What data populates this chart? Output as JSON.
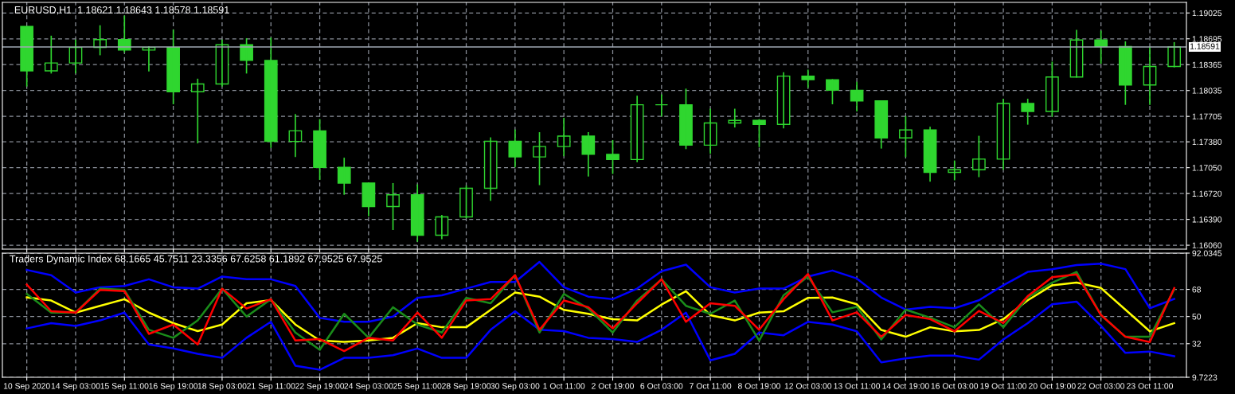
{
  "chart_data": [
    {
      "type": "candlestick",
      "title": "EURUSD,H1  1.18621 1.18643 1.18578 1.18591",
      "color": "#2fd62f",
      "ohlc": [
        [
          1.18852,
          1.18852,
          1.18086,
          1.18286
        ],
        [
          1.18286,
          1.18735,
          1.18252,
          1.18386
        ],
        [
          1.18386,
          1.18685,
          1.18252,
          1.18585
        ],
        [
          1.18585,
          1.18868,
          1.18485,
          1.18685
        ],
        [
          1.18685,
          1.18992,
          1.1852,
          1.18552
        ],
        [
          1.18552,
          1.18602,
          1.18279,
          1.18585
        ],
        [
          1.18585,
          1.18812,
          1.17859,
          1.18019
        ],
        [
          1.18019,
          1.18186,
          1.1736,
          1.18119
        ],
        [
          1.18119,
          1.18685,
          1.18086,
          1.18619
        ],
        [
          1.18619,
          1.18702,
          1.18252,
          1.18419
        ],
        [
          1.18419,
          1.18712,
          1.17303,
          1.17386
        ],
        [
          1.17386,
          1.17736,
          1.17187,
          1.1752
        ],
        [
          1.1752,
          1.1767,
          1.16894,
          1.17054
        ],
        [
          1.17054,
          1.17177,
          1.16704,
          1.16854
        ],
        [
          1.16854,
          1.16854,
          1.16428,
          1.16554
        ],
        [
          1.16554,
          1.16854,
          1.16254,
          1.16704
        ],
        [
          1.16704,
          1.16837,
          1.16104,
          1.16188
        ],
        [
          1.16188,
          1.16448,
          1.16138,
          1.16421
        ],
        [
          1.16421,
          1.16821,
          1.16404,
          1.16787
        ],
        [
          1.16787,
          1.17437,
          1.16627,
          1.17387
        ],
        [
          1.17387,
          1.17537,
          1.17054,
          1.17187
        ],
        [
          1.17187,
          1.17503,
          1.16827,
          1.1732
        ],
        [
          1.1732,
          1.17687,
          1.17197,
          1.17453
        ],
        [
          1.17453,
          1.17503,
          1.16937,
          1.1722
        ],
        [
          1.1722,
          1.17403,
          1.1697,
          1.17154
        ],
        [
          1.17154,
          1.17969,
          1.1712,
          1.17853
        ],
        [
          1.17853,
          1.17986,
          1.17703,
          1.17853
        ],
        [
          1.17853,
          1.18059,
          1.17287,
          1.17337
        ],
        [
          1.17337,
          1.17803,
          1.17227,
          1.1762
        ],
        [
          1.1762,
          1.17803,
          1.17563,
          1.17653
        ],
        [
          1.17653,
          1.1767,
          1.17313,
          1.17603
        ],
        [
          1.17603,
          1.18269,
          1.17553,
          1.18219
        ],
        [
          1.18219,
          1.18302,
          1.18069,
          1.18173
        ],
        [
          1.18173,
          1.1818,
          1.17859,
          1.18038
        ],
        [
          1.18038,
          1.18146,
          1.17768,
          1.17903
        ],
        [
          1.17903,
          1.17903,
          1.17294,
          1.1743
        ],
        [
          1.1743,
          1.17707,
          1.17186,
          1.17531
        ],
        [
          1.17531,
          1.17572,
          1.16872,
          1.1699
        ],
        [
          1.1699,
          1.17142,
          1.16889,
          1.17024
        ],
        [
          1.17024,
          1.17457,
          1.16929,
          1.17159
        ],
        [
          1.17159,
          1.1793,
          1.17024,
          1.17869
        ],
        [
          1.17869,
          1.1793,
          1.17599,
          1.17768
        ],
        [
          1.17768,
          1.18403,
          1.177,
          1.18207
        ],
        [
          1.18207,
          1.18809,
          1.182,
          1.1868
        ],
        [
          1.1868,
          1.18799,
          1.18376,
          1.18596
        ],
        [
          1.18596,
          1.18663,
          1.17852,
          1.18106
        ],
        [
          1.18106,
          1.18596,
          1.17852,
          1.18342
        ],
        [
          1.18342,
          1.18653,
          1.1833,
          1.18591
        ]
      ],
      "ylim": [
        1.1601,
        1.1916
      ],
      "yticks": [
        {
          "value": 1.19025,
          "label": "1.19025"
        },
        {
          "value": 1.18695,
          "label": "1.18695"
        },
        {
          "value": 1.18365,
          "label": "1.18365"
        },
        {
          "value": 1.18035,
          "label": "1.18035"
        },
        {
          "value": 1.17705,
          "label": "1.17705"
        },
        {
          "value": 1.1738,
          "label": "1.17380"
        },
        {
          "value": 1.1705,
          "label": "1.17050"
        },
        {
          "value": 1.1672,
          "label": "1.16720"
        },
        {
          "value": 1.1639,
          "label": "1.16390"
        },
        {
          "value": 1.1606,
          "label": "1.16060"
        }
      ],
      "ref_lines": [
        {
          "axis": "y",
          "value": 1.18591,
          "label": "1.18591",
          "color": "#a0a8b4"
        }
      ],
      "grid": true,
      "tick_labels": "y"
    },
    {
      "type": "line",
      "title": "Traders Dynamic Index 68.1665 45.7511 23.3356 67.6258 61.1892 67.9525 67.9525",
      "categories": [
        "10 Sep 2020",
        null,
        "14 Sep 03:00",
        null,
        "15 Sep 11:00",
        null,
        "16 Sep 19:00",
        null,
        "18 Sep 03:00",
        null,
        "21 Sep 11:00",
        null,
        "22 Sep 19:00",
        null,
        "24 Sep 03:00",
        null,
        "25 Sep 11:00",
        null,
        "28 Sep 19:00",
        null,
        "30 Sep 03:00",
        null,
        "1 Oct 11:00",
        null,
        "2 Oct 19:00",
        null,
        "6 Oct 03:00",
        null,
        "7 Oct 11:00",
        null,
        "8 Oct 19:00",
        null,
        "12 Oct 03:00",
        null,
        "13 Oct 11:00",
        null,
        "14 Oct 19:00",
        null,
        "16 Oct 03:00",
        null,
        "19 Oct 11:00",
        null,
        "20 Oct 19:00",
        null,
        "22 Oct 03:00",
        null,
        "23 Oct 11:00",
        null
      ],
      "series": [
        {
          "color": "#0000ff",
          "values": [
            80.9,
            77.4,
            65.9,
            69.4,
            70.3,
            74.7,
            69.4,
            68.5,
            76.5,
            74.7,
            74.7,
            70.3,
            49.1,
            46.5,
            46.5,
            50.0,
            62.4,
            64.1,
            68.5,
            72.9,
            72.9,
            86.2,
            69.4,
            63.2,
            61.5,
            68.5,
            80.0,
            84.4,
            69.4,
            65.9,
            68.5,
            68.5,
            76.5,
            80.5,
            75.2,
            62.6,
            54.6,
            56.4,
            55.5,
            60.8,
            70.7,
            79.6,
            81.4,
            84.1,
            85.0,
            81.4,
            55.5,
            61.7
          ]
        },
        {
          "color": "#0000ff",
          "values": [
            42.1,
            45.6,
            43.8,
            47.4,
            52.6,
            31.5,
            28.8,
            25.3,
            22.6,
            35.9,
            46.5,
            17.4,
            14.7,
            22.6,
            22.6,
            24.4,
            28.8,
            22.6,
            22.6,
            41.2,
            53.5,
            41.2,
            40.3,
            35.9,
            35.0,
            33.2,
            41.2,
            52.6,
            20.9,
            25.3,
            39.4,
            37.6,
            46.5,
            44.7,
            40.2,
            19.6,
            22.3,
            24.1,
            24.1,
            21.4,
            34.8,
            45.6,
            58.1,
            59.9,
            43.8,
            25.9,
            26.8,
            23.7
          ]
        },
        {
          "color": "#ffff00",
          "values": [
            62.7,
            60.6,
            52.6,
            57.1,
            61.5,
            52.6,
            45.6,
            40.3,
            44.7,
            58.8,
            60.9,
            44.7,
            34.1,
            33.2,
            34.1,
            35.9,
            45.6,
            42.9,
            42.9,
            54.4,
            65.9,
            63.2,
            54.4,
            51.8,
            48.2,
            47.4,
            57.9,
            66.8,
            50.9,
            47.4,
            52.6,
            53.5,
            62.4,
            62.6,
            58.1,
            41.1,
            36.6,
            42.9,
            40.2,
            41.1,
            48.3,
            60.8,
            70.7,
            72.5,
            68.9,
            54.6,
            40.2,
            45.6
          ]
        },
        {
          "color": "#1a8c1a",
          "values": [
            65.0,
            52.6,
            52.6,
            68.5,
            67.6,
            41.2,
            35.9,
            47.4,
            68.5,
            50.0,
            61.5,
            39.4,
            27.9,
            51.8,
            35.9,
            56.2,
            44.7,
            39.4,
            62.4,
            58.8,
            77.4,
            39.4,
            65.0,
            55.3,
            39.4,
            60.6,
            74.7,
            57.1,
            51.8,
            60.6,
            34.1,
            64.1,
            76.5,
            52.8,
            56.4,
            34.8,
            54.6,
            49.2,
            42.9,
            58.1,
            42.9,
            62.6,
            72.5,
            79.6,
            51.0,
            36.6,
            36.6,
            68.0
          ]
        },
        {
          "color": "#ff0000",
          "values": [
            71.2,
            53.5,
            52.6,
            67.6,
            66.8,
            38.5,
            44.7,
            31.5,
            68.5,
            55.3,
            61.5,
            34.1,
            35.0,
            27.1,
            35.9,
            34.1,
            52.6,
            35.9,
            60.6,
            61.5,
            77.4,
            41.2,
            60.6,
            56.2,
            42.1,
            58.8,
            74.7,
            46.5,
            58.8,
            57.1,
            41.2,
            61.5,
            78.2,
            47.4,
            52.8,
            36.6,
            51.0,
            48.3,
            40.2,
            53.7,
            45.6,
            63.5,
            76.1,
            77.9,
            51.0,
            36.6,
            33.1,
            68.9
          ]
        }
      ],
      "ylim": [
        9.7223,
        92.0345
      ],
      "yticks": [
        92.0345,
        68,
        50,
        32,
        9.7223
      ],
      "grid": true
    }
  ]
}
